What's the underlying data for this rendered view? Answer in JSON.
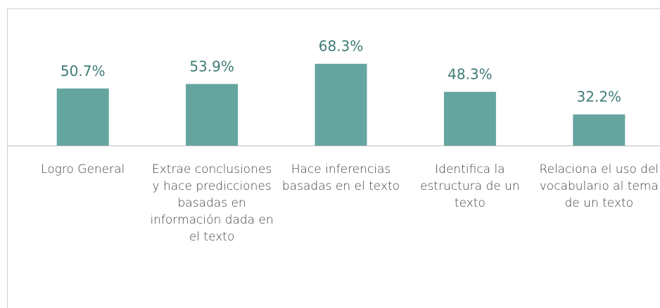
{
  "chart_data": {
    "type": "bar",
    "categories": [
      "Logro General",
      "Extrae conclusiones y hace predicciones basadas en información dada en el texto",
      "Hace inferencias basadas en el texto",
      "Identifica la estructura de un texto",
      "Relaciona el uso del vocabulario al tema de un texto"
    ],
    "values": [
      50.7,
      53.9,
      68.3,
      48.3,
      32.2
    ],
    "value_labels": [
      "50.7%",
      "53.9%",
      "68.3%",
      "48.3%",
      "32.2%"
    ],
    "color": "#64a59f",
    "ylim": [
      10,
      80
    ]
  }
}
